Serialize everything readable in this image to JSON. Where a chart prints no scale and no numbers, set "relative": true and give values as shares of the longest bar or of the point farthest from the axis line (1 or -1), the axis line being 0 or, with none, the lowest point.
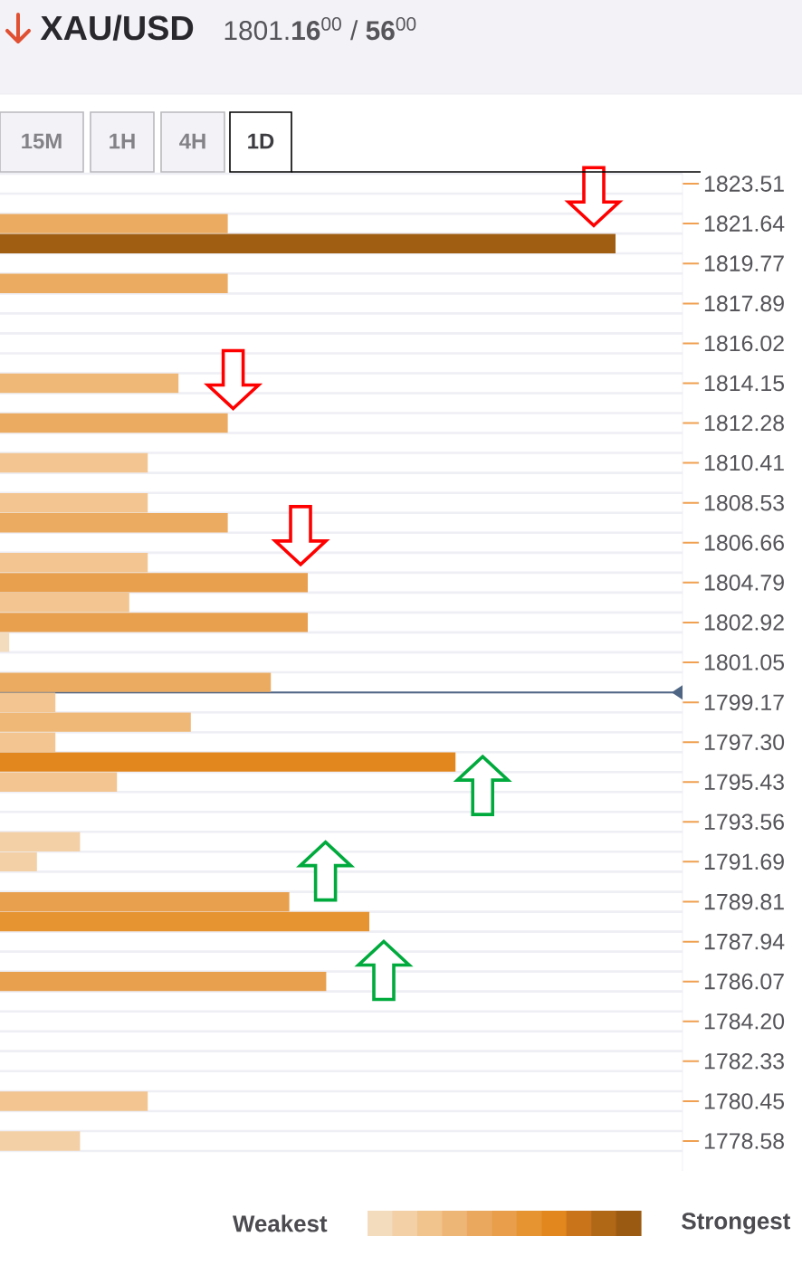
{
  "chart_data": {
    "type": "bar",
    "orientation": "horizontal",
    "relative": true,
    "title": "XAU/USD",
    "subtitle": "1801.**16**$^{00}$ / **56**$^{00}$",
    "x": [
      1821.64,
      1820.7,
      1818.83,
      1814.15,
      1812.28,
      1810.41,
      1808.53,
      1807.6,
      1805.73,
      1804.79,
      1803.86,
      1802.92,
      1801.99,
      1800.11,
      1799.17,
      1798.24,
      1797.3,
      1796.37,
      1795.43,
      1792.63,
      1791.69,
      1789.81,
      1788.88,
      1786.07,
      1780.45,
      1778.58
    ],
    "values": [
      0.37,
      1,
      0.37,
      0.29,
      0.37,
      0.24,
      0.24,
      0.37,
      0.24,
      0.5,
      0.21,
      0.5,
      0.015,
      0.44,
      0.09,
      0.31,
      0.09,
      0.74,
      0.19,
      0.13,
      0.06,
      0.47,
      0.6,
      0.53,
      0.24,
      0.13
    ],
    "colors": [
      "#ebab60",
      "#a05e13",
      "#ebab60",
      "#efb877",
      "#ebab60",
      "#f2c591",
      "#f2c591",
      "#ebab60",
      "#f2c591",
      "#e8a04e",
      "#f2c591",
      "#e8a04e",
      "#f3dcbe",
      "#ebab60",
      "#f2c591",
      "#efb877",
      "#f2c591",
      "#e2871d",
      "#f2c591",
      "#f3d0a6",
      "#f3d0a6",
      "#e8a04e",
      "#e69431",
      "#e8a04e",
      "#f2c591",
      "#f3d0a6"
    ],
    "ylim": [
      1777.18,
      1823.98
    ],
    "yticks": [
      1823.51,
      1821.64,
      1819.77,
      1817.89,
      1816.02,
      1814.15,
      1812.28,
      1810.41,
      1808.53,
      1806.66,
      1804.79,
      1802.92,
      1801.05,
      1799.17,
      {
        "value": 1797.3,
        "label": "1797.30"
      },
      1795.43,
      1793.56,
      1791.69,
      1789.81,
      1787.94,
      1786.07,
      {
        "value": 1784.2,
        "label": "1784.20"
      },
      1782.33,
      1780.45,
      1778.58
    ],
    "tick_labels": "y",
    "grid": "y",
    "ref_lines": [
      {
        "axis": "y",
        "value": 1799.64,
        "color": "#4f6584"
      }
    ],
    "annotations": [
      "15M",
      "1H",
      "4H",
      "1D",
      "Weakest",
      "Strongest"
    ]
  }
}
